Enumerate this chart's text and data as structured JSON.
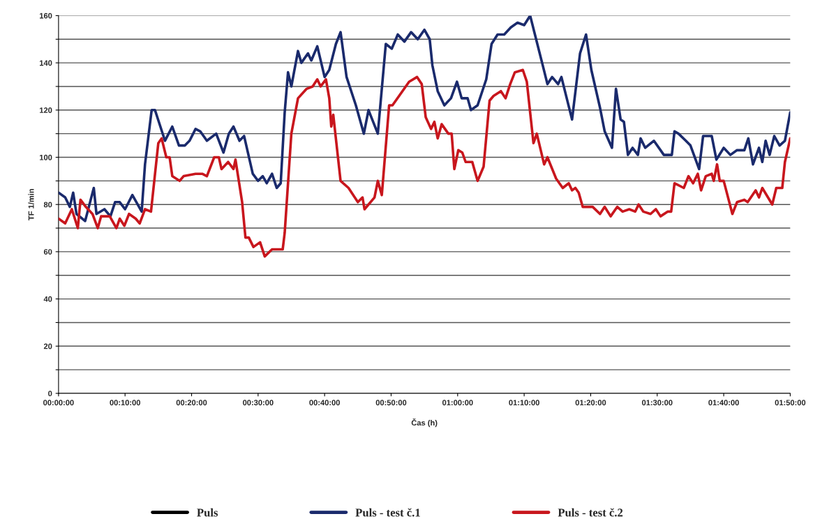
{
  "chart_data": {
    "type": "line",
    "xlabel": "Čas (h)",
    "ylabel": "TF 1/min",
    "xlim": [
      0,
      110
    ],
    "xticks": [
      {
        "value": 0,
        "label": "00:00:00"
      },
      {
        "value": 10,
        "label": "00:10:00"
      },
      {
        "value": 20,
        "label": "00:20:00"
      },
      {
        "value": 30,
        "label": "00:30:00"
      },
      {
        "value": 40,
        "label": "00:40:00"
      },
      {
        "value": 50,
        "label": "00:50:00"
      },
      {
        "value": 60,
        "label": "01:00:00"
      },
      {
        "value": 70,
        "label": "01:10:00"
      },
      {
        "value": 80,
        "label": "01:20:00"
      },
      {
        "value": 90,
        "label": "01:30:00"
      },
      {
        "value": 100,
        "label": "01:40:00"
      },
      {
        "value": 110,
        "label": "01:50:00"
      }
    ],
    "ylim": [
      0,
      160
    ],
    "yticks": [
      0,
      {
        "value": 10,
        "label": null
      },
      20,
      {
        "value": 30,
        "label": null
      },
      40,
      {
        "value": 50,
        "label": null
      },
      60,
      {
        "value": 70,
        "label": null
      },
      80,
      {
        "value": 90,
        "label": null
      },
      100,
      {
        "value": 110,
        "label": null
      },
      120,
      {
        "value": 130,
        "label": null
      },
      140,
      {
        "value": 150,
        "label": null
      },
      160
    ],
    "grid": "y",
    "legend": "bottom",
    "marker": "none",
    "line_style": "solid",
    "series": [
      {
        "name": "Puls",
        "color": "#000000"
      },
      {
        "name": "Puls - test č.1",
        "color": "#1a2a6c",
        "x": [
          0,
          1,
          1.7,
          2.2,
          2.7,
          4,
          5.3,
          5.7,
          6.9,
          7.8,
          8.5,
          9.2,
          10,
          11.1,
          12.5,
          13,
          14,
          14.5,
          16,
          17.1,
          18.1,
          19,
          19.7,
          20.6,
          21.3,
          22.3,
          23.7,
          24.8,
          25.6,
          26.3,
          27.2,
          27.9,
          29.2,
          30,
          30.7,
          31.3,
          32.1,
          32.8,
          33.4,
          34,
          34.5,
          35,
          36,
          36.5,
          37.5,
          38,
          38.9,
          40,
          40.7,
          41.7,
          42.4,
          43.3,
          44.7,
          45.9,
          46.6,
          48,
          49.2,
          50.1,
          51,
          52,
          53,
          54,
          55,
          55.8,
          56.2,
          57,
          58,
          59,
          59.9,
          60.6,
          61.5,
          62,
          63,
          64.3,
          65.1,
          66,
          67,
          68,
          69,
          70,
          70.9,
          72.7,
          73.5,
          74.2,
          75.1,
          75.6,
          77.2,
          78.4,
          79.3,
          80.1,
          81.4,
          82.1,
          83.2,
          83.8,
          84.5,
          85,
          85.6,
          86.3,
          87.1,
          87.5,
          88.2,
          89.5,
          91,
          92.2,
          92.6,
          93.2,
          94.3,
          95,
          96.3,
          96.9,
          98.2,
          98.9,
          100,
          101,
          102,
          103.1,
          103.7,
          104.4,
          105.3,
          105.8,
          106.3,
          106.9,
          107.6,
          108.4,
          109.2,
          110
        ],
        "values": [
          85,
          83,
          79,
          85,
          76,
          73,
          87,
          76,
          78,
          75,
          81,
          81,
          78,
          84,
          77,
          97,
          120,
          120,
          107,
          113,
          105,
          105,
          107,
          112,
          111,
          107,
          110,
          102,
          110,
          113,
          107,
          109,
          93,
          90,
          92,
          89,
          93,
          87,
          89,
          119,
          136,
          130,
          145,
          140,
          144,
          141,
          147,
          134,
          137,
          148,
          153,
          134,
          122,
          110,
          120,
          110,
          148,
          146,
          152,
          149,
          153,
          150,
          154,
          150,
          139,
          128,
          122,
          125,
          132,
          125,
          125,
          120,
          122,
          133,
          148,
          152,
          152,
          155,
          157,
          156,
          160,
          140,
          131,
          134,
          131,
          134,
          116,
          144,
          152,
          137,
          121,
          111,
          104,
          129,
          116,
          115,
          101,
          104,
          101,
          108,
          104,
          107,
          101,
          101,
          111,
          110,
          107,
          105,
          95,
          109,
          109,
          99,
          104,
          101,
          103,
          103,
          108,
          97,
          104,
          98,
          107,
          101,
          109,
          105,
          107,
          119
        ]
      },
      {
        "name": "Puls - test č.2",
        "color": "#c8161d",
        "x": [
          0,
          1,
          2,
          2.9,
          3.3,
          4.1,
          5.1,
          5.9,
          6.4,
          7.7,
          8.7,
          9.2,
          9.9,
          10.6,
          11.6,
          12.2,
          13,
          13.9,
          15,
          15.5,
          16.2,
          16.7,
          17.1,
          18.2,
          18.8,
          20.6,
          21.6,
          22.3,
          23.4,
          24.1,
          24.5,
          25.5,
          26.3,
          26.6,
          27.6,
          28.1,
          28.6,
          29.3,
          30.3,
          31,
          32.1,
          33.7,
          34,
          35,
          36,
          37.3,
          38.2,
          38.9,
          39.4,
          40.2,
          40.7,
          41,
          41.3,
          42.4,
          43.6,
          45,
          45.7,
          46,
          47.5,
          48,
          48.6,
          49.7,
          50.2,
          52.7,
          53.9,
          54.6,
          55.2,
          56,
          56.5,
          57,
          57.6,
          58.6,
          59.1,
          59.5,
          60.1,
          60.7,
          61.2,
          62.2,
          62.5,
          63,
          63.9,
          64.8,
          65.4,
          66.5,
          67.2,
          67.9,
          68.6,
          69.8,
          70.4,
          71.4,
          71.9,
          73,
          73.5,
          74.8,
          75.8,
          76.7,
          77.2,
          77.7,
          78.2,
          78.8,
          80.3,
          81.4,
          82.1,
          83,
          84,
          84.8,
          85.8,
          86.7,
          87.2,
          87.9,
          89,
          89.8,
          90.5,
          91.6,
          92.1,
          92.6,
          94,
          94.7,
          95.4,
          96.1,
          96.6,
          97.3,
          98.2,
          98.5,
          99,
          99.4,
          100,
          101.3,
          102,
          103.1,
          103.6,
          104.8,
          105.3,
          105.8,
          107.3,
          107.9,
          108.8,
          109.2,
          110
        ],
        "values": [
          74,
          72,
          78,
          70,
          82,
          79,
          76,
          70,
          75,
          75,
          70,
          74,
          71,
          76,
          74,
          72,
          78,
          77,
          106,
          108,
          100,
          100,
          92,
          90,
          92,
          93,
          93,
          92,
          100,
          100,
          95,
          98,
          95,
          99,
          81,
          66,
          66,
          62,
          64,
          58,
          61,
          61,
          68,
          110,
          125,
          129,
          130,
          133,
          130,
          133,
          125,
          113,
          118,
          90,
          87,
          81,
          83,
          78,
          83,
          90,
          84,
          122,
          122,
          132,
          134,
          131,
          117,
          112,
          115,
          108,
          114,
          110,
          110,
          95,
          103,
          102,
          98,
          98,
          95,
          90,
          96,
          124,
          126,
          128,
          125,
          131,
          136,
          137,
          132,
          106,
          110,
          97,
          100,
          91,
          87,
          89,
          86,
          87,
          85,
          79,
          79,
          76,
          79,
          75,
          79,
          77,
          78,
          77,
          80,
          77,
          76,
          78,
          75,
          77,
          77,
          89,
          87,
          92,
          89,
          93,
          86,
          92,
          93,
          90,
          97,
          90,
          90,
          76,
          81,
          82,
          81,
          86,
          83,
          87,
          80,
          87,
          87,
          98,
          108
        ]
      }
    ]
  }
}
